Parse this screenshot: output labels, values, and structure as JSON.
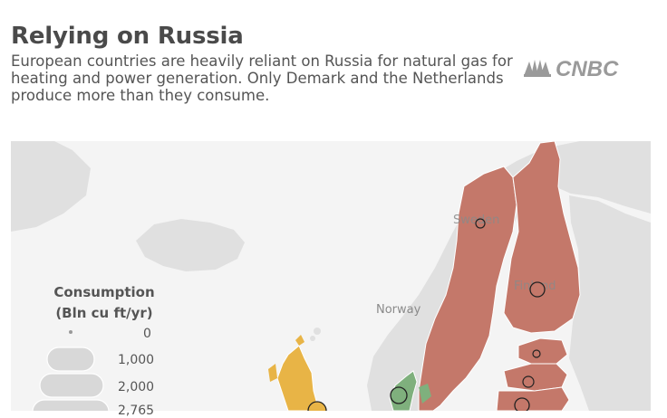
{
  "header": {
    "title": "Relying on Russia",
    "subtitle": "European countries are heavily reliant on Russia for natural gas for heating and power generation. Only Demark and the Netherlands produce more than they consume.",
    "logo_text": "CNBC"
  },
  "map": {
    "labels": {
      "sweden": "Sweden",
      "finland": "Finland",
      "norway": "Norway"
    },
    "colors": {
      "russia_reliant": "#c4786a",
      "producer": "#7fb07d",
      "uk": "#e8b446",
      "land": "#e0e0e0",
      "water": "#f4f4f4",
      "bubble_fill": "#c4786a",
      "bubble_stroke": "#222222"
    }
  },
  "legend": {
    "title_line1": "Consumption",
    "title_line2": "(Bln cu ft/yr)",
    "values": [
      "0",
      "1,000",
      "2,000",
      "2,765"
    ]
  }
}
